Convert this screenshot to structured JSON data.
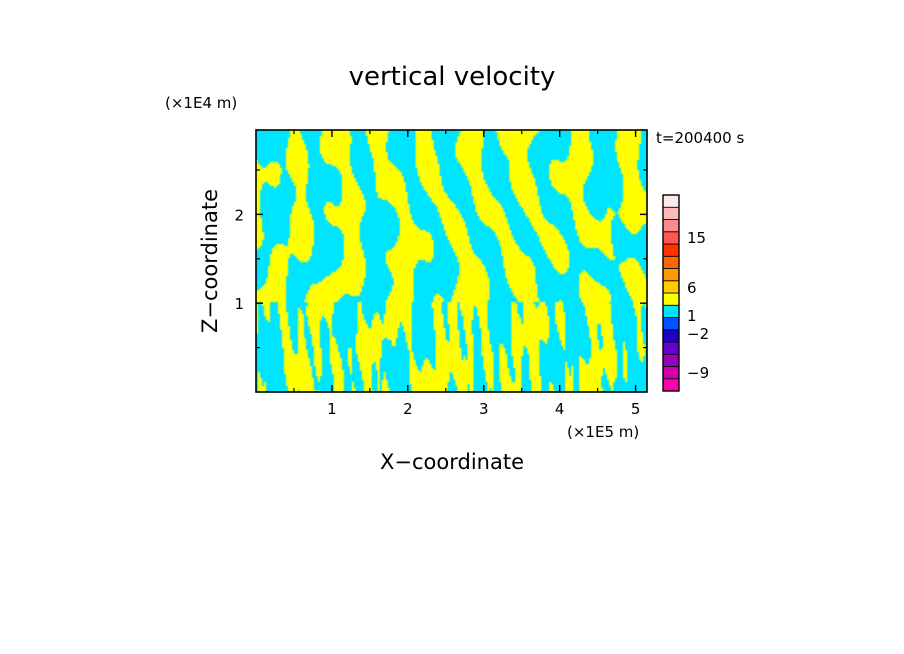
{
  "chart_data": {
    "type": "heatmap",
    "title": "vertical velocity",
    "xlabel": "X−coordinate",
    "ylabel": "Z−coordinate",
    "x_unit": "(×1E5 m)",
    "y_unit": "(×1E4 m)",
    "time_label": "t=200400 s",
    "xlim": [
      0,
      5.15
    ],
    "ylim": [
      0,
      2.95
    ],
    "x_ticks": [
      1,
      2,
      3,
      4,
      5
    ],
    "y_ticks": [
      1,
      2
    ],
    "colorbar": {
      "levels": [
        {
          "color": "#ff00aa"
        },
        {
          "color": "#cc00aa"
        },
        {
          "color": "#9900bb"
        },
        {
          "color": "#6600cc"
        },
        {
          "color": "#1e00c8"
        },
        {
          "color": "#0055ff"
        },
        {
          "color": "#00e5ff"
        },
        {
          "color": "#ffff00"
        },
        {
          "color": "#ffcc00"
        },
        {
          "color": "#ff9900"
        },
        {
          "color": "#ff6600"
        },
        {
          "color": "#ff3300"
        },
        {
          "color": "#ff5555"
        },
        {
          "color": "#ff8888"
        },
        {
          "color": "#ffbbbb"
        },
        {
          "color": "#ffe8e8"
        }
      ],
      "tick_labels": [
        "−9",
        "−2",
        "1",
        "6",
        "15"
      ],
      "tick_values": [
        -9,
        -2,
        1,
        6,
        15
      ]
    },
    "field_colors": {
      "positive": "#ffff00",
      "negative": "#00e5ff"
    }
  }
}
